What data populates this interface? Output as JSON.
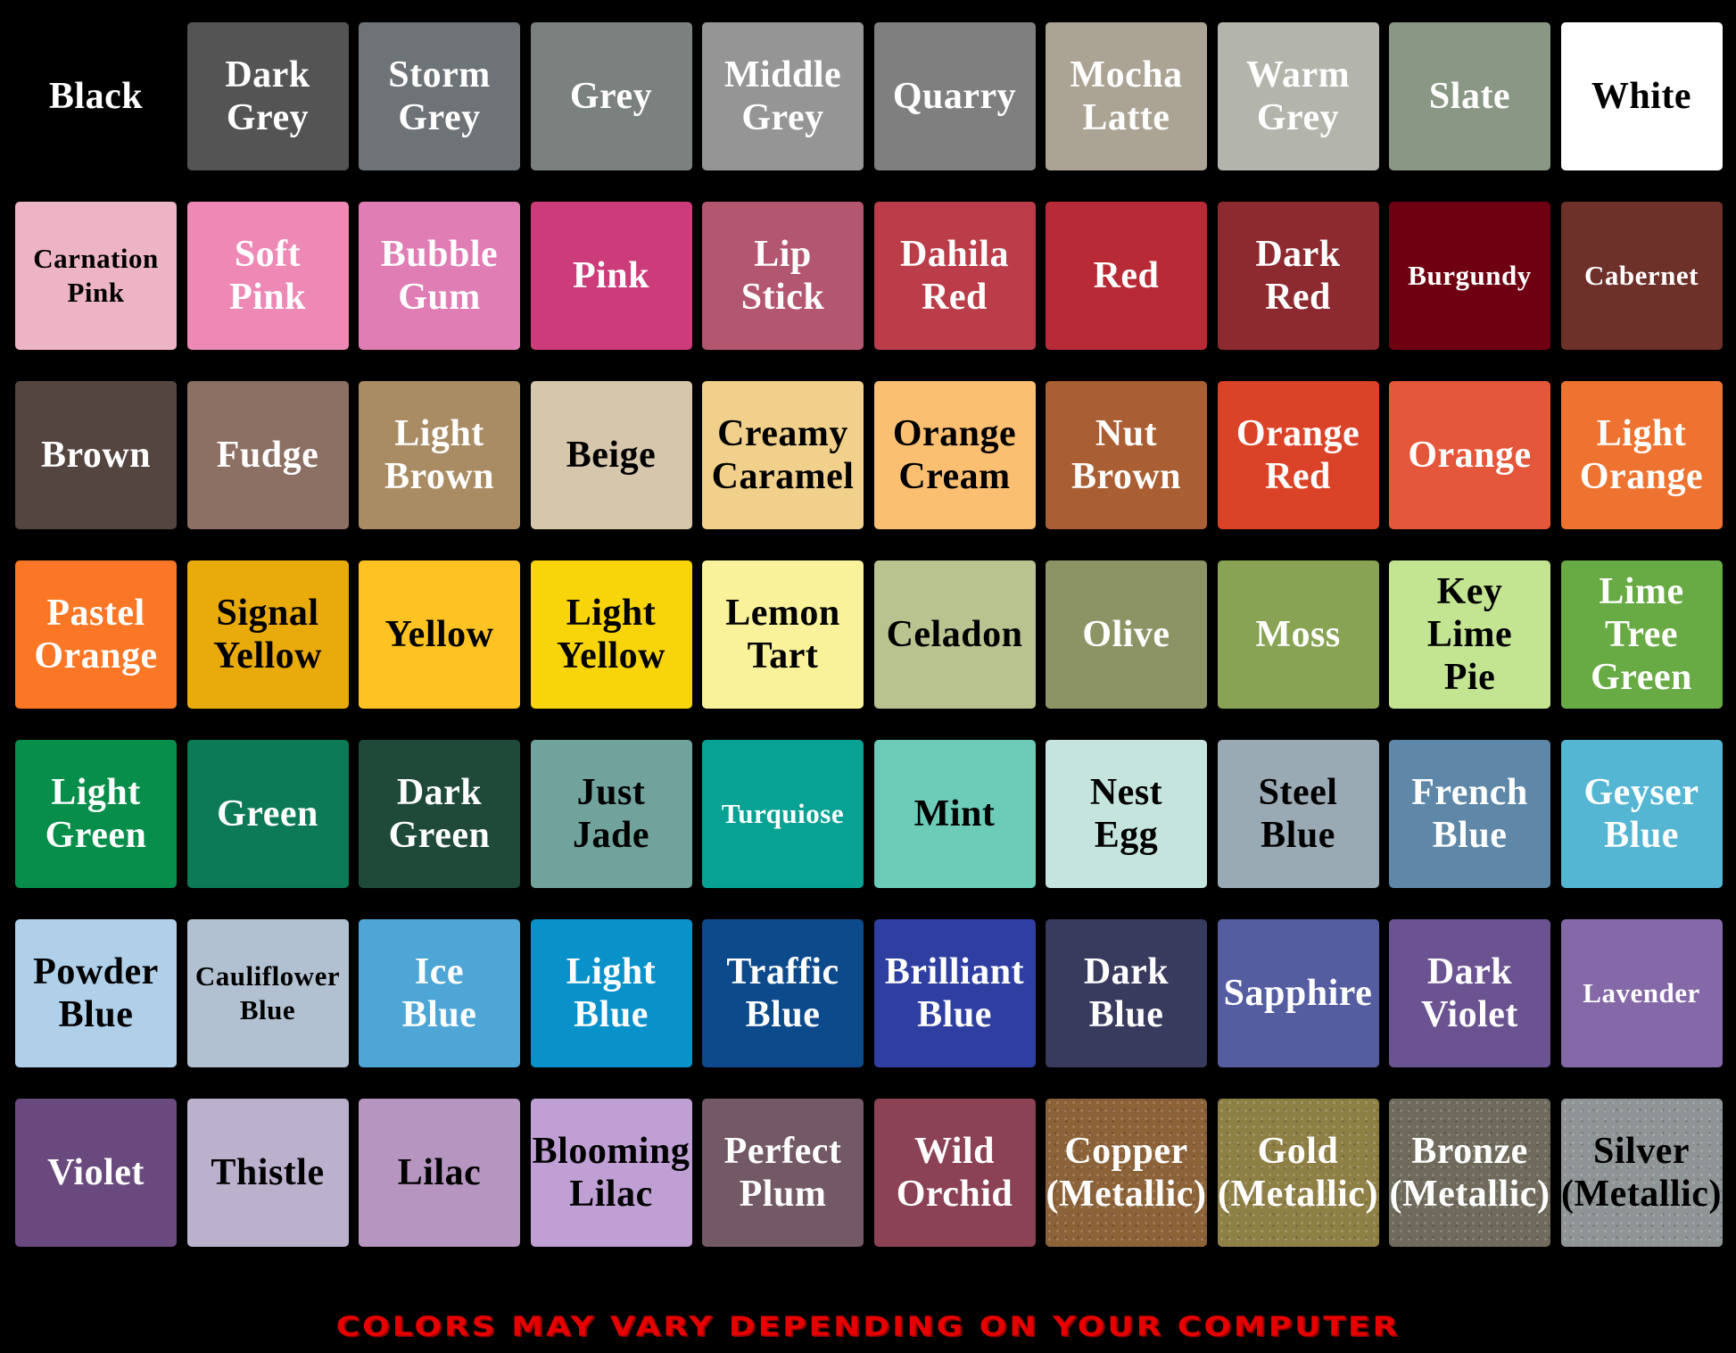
{
  "swatches": [
    {
      "name": "Black",
      "color": "#000000",
      "text": "#ffffff"
    },
    {
      "name": "Dark Grey",
      "color": "#545454",
      "text": "#ffffff"
    },
    {
      "name": "Storm Grey",
      "color": "#6e7378",
      "text": "#ffffff"
    },
    {
      "name": "Grey",
      "color": "#7b817e",
      "text": "#ffffff"
    },
    {
      "name": "Middle Grey",
      "color": "#959595",
      "text": "#ffffff"
    },
    {
      "name": "Quarry",
      "color": "#7f7f7f",
      "text": "#ffffff"
    },
    {
      "name": "Mocha Latte",
      "color": "#aba394",
      "text": "#ffffff"
    },
    {
      "name": "Warm Grey",
      "color": "#b3b4ab",
      "text": "#ffffff"
    },
    {
      "name": "Slate",
      "color": "#8a9784",
      "text": "#ffffff"
    },
    {
      "name": "White",
      "color": "#ffffff",
      "text": "#000000"
    },
    {
      "name": "Carnation Pink",
      "color": "#ecb4c4",
      "text": "#000000"
    },
    {
      "name": "Soft Pink",
      "color": "#ee88b4",
      "text": "#ffffff"
    },
    {
      "name": "Bubble Gum",
      "color": "#df7db4",
      "text": "#ffffff"
    },
    {
      "name": "Pink",
      "color": "#cc3c7a",
      "text": "#ffffff"
    },
    {
      "name": "Lip Stick",
      "color": "#b35670",
      "text": "#ffffff"
    },
    {
      "name": "Dahila Red",
      "color": "#bb3d4a",
      "text": "#ffffff"
    },
    {
      "name": "Red",
      "color": "#b82b36",
      "text": "#ffffff"
    },
    {
      "name": "Dark Red",
      "color": "#8c2a30",
      "text": "#ffffff"
    },
    {
      "name": "Burgundy",
      "color": "#6e0012",
      "text": "#ffffff"
    },
    {
      "name": "Cabernet",
      "color": "#6e312a",
      "text": "#ffffff"
    },
    {
      "name": "Brown",
      "color": "#554540",
      "text": "#ffffff"
    },
    {
      "name": "Fudge",
      "color": "#8b7063",
      "text": "#ffffff"
    },
    {
      "name": "Light Brown",
      "color": "#a98c63",
      "text": "#ffffff"
    },
    {
      "name": "Beige",
      "color": "#d6c6ab",
      "text": "#000000"
    },
    {
      "name": "Creamy Caramel",
      "color": "#f0d08a",
      "text": "#000000"
    },
    {
      "name": "Orange Cream",
      "color": "#fbbf72",
      "text": "#000000"
    },
    {
      "name": "Nut Brown",
      "color": "#a95f33",
      "text": "#ffffff"
    },
    {
      "name": "Orange Red",
      "color": "#db4328",
      "text": "#ffffff"
    },
    {
      "name": "Orange",
      "color": "#e4573a",
      "text": "#ffffff"
    },
    {
      "name": "Light Orange",
      "color": "#ee7330",
      "text": "#ffffff"
    },
    {
      "name": "Pastel Orange",
      "color": "#fb7625",
      "text": "#ffffff"
    },
    {
      "name": "Signal Yellow",
      "color": "#e9aa0c",
      "text": "#000000"
    },
    {
      "name": "Yellow",
      "color": "#fec322",
      "text": "#000000"
    },
    {
      "name": "Light Yellow",
      "color": "#f8d40a",
      "text": "#000000"
    },
    {
      "name": "Lemon Tart",
      "color": "#f9f29a",
      "text": "#000000"
    },
    {
      "name": "Celadon",
      "color": "#b9c390",
      "text": "#000000"
    },
    {
      "name": "Olive",
      "color": "#8c9466",
      "text": "#ffffff"
    },
    {
      "name": "Moss",
      "color": "#87a353",
      "text": "#ffffff"
    },
    {
      "name": "Key Lime Pie",
      "color": "#c3e592",
      "text": "#000000"
    },
    {
      "name": "Lime Tree Green",
      "color": "#68aa44",
      "text": "#ffffff"
    },
    {
      "name": "Light Green",
      "color": "#078e4a",
      "text": "#ffffff"
    },
    {
      "name": "Green",
      "color": "#0c7a57",
      "text": "#ffffff"
    },
    {
      "name": "Dark Green",
      "color": "#1f4a3a",
      "text": "#ffffff"
    },
    {
      "name": "Just Jade",
      "color": "#71a39c",
      "text": "#000000"
    },
    {
      "name": "Turquiose",
      "color": "#08a294",
      "text": "#ffffff"
    },
    {
      "name": "Mint",
      "color": "#6cccb8",
      "text": "#000000"
    },
    {
      "name": "Nest Egg",
      "color": "#c4e4dd",
      "text": "#000000"
    },
    {
      "name": "Steel Blue",
      "color": "#9aaab4",
      "text": "#000000"
    },
    {
      "name": "French Blue",
      "color": "#5e87a8",
      "text": "#ffffff"
    },
    {
      "name": "Geyser Blue",
      "color": "#55b6d3",
      "text": "#ffffff"
    },
    {
      "name": "Powder Blue",
      "color": "#b0d0ea",
      "text": "#000000"
    },
    {
      "name": "Cauliflower Blue",
      "color": "#b2c1d1",
      "text": "#000000"
    },
    {
      "name": "Ice Blue",
      "color": "#4da6d6",
      "text": "#ffffff"
    },
    {
      "name": "Light Blue",
      "color": "#0991c9",
      "text": "#ffffff"
    },
    {
      "name": "Traffic Blue",
      "color": "#0c4a8c",
      "text": "#ffffff"
    },
    {
      "name": "Brilliant Blue",
      "color": "#2f3fa1",
      "text": "#ffffff"
    },
    {
      "name": "Dark Blue",
      "color": "#383a5e",
      "text": "#ffffff"
    },
    {
      "name": "Sapphire",
      "color": "#545da0",
      "text": "#ffffff"
    },
    {
      "name": "Dark Violet",
      "color": "#6a5390",
      "text": "#ffffff"
    },
    {
      "name": "Lavender",
      "color": "#8468a8",
      "text": "#ffffff"
    },
    {
      "name": "Violet",
      "color": "#6a4a7e",
      "text": "#ffffff"
    },
    {
      "name": "Thistle",
      "color": "#bcb1cc",
      "text": "#000000"
    },
    {
      "name": "Lilac",
      "color": "#b695c0",
      "text": "#000000"
    },
    {
      "name": "Blooming Lilac",
      "color": "#bf9fd4",
      "text": "#000000"
    },
    {
      "name": "Perfect Plum",
      "color": "#735866",
      "text": "#ffffff"
    },
    {
      "name": "Wild Orchid",
      "color": "#8b4255",
      "text": "#ffffff"
    },
    {
      "name": "Copper (Metallic)",
      "color": "#8c6238",
      "text": "#ffffff"
    },
    {
      "name": "Gold (Metallic)",
      "color": "#8e7f45",
      "text": "#ffffff"
    },
    {
      "name": "Bronze (Metallic)",
      "color": "#6f6a5b",
      "text": "#ffffff"
    },
    {
      "name": "Silver (Metallic)",
      "color": "#8f9596",
      "text": "#000000"
    }
  ],
  "footer": "COLORS MAY VARY DEPENDING ON YOUR COMPUTER"
}
